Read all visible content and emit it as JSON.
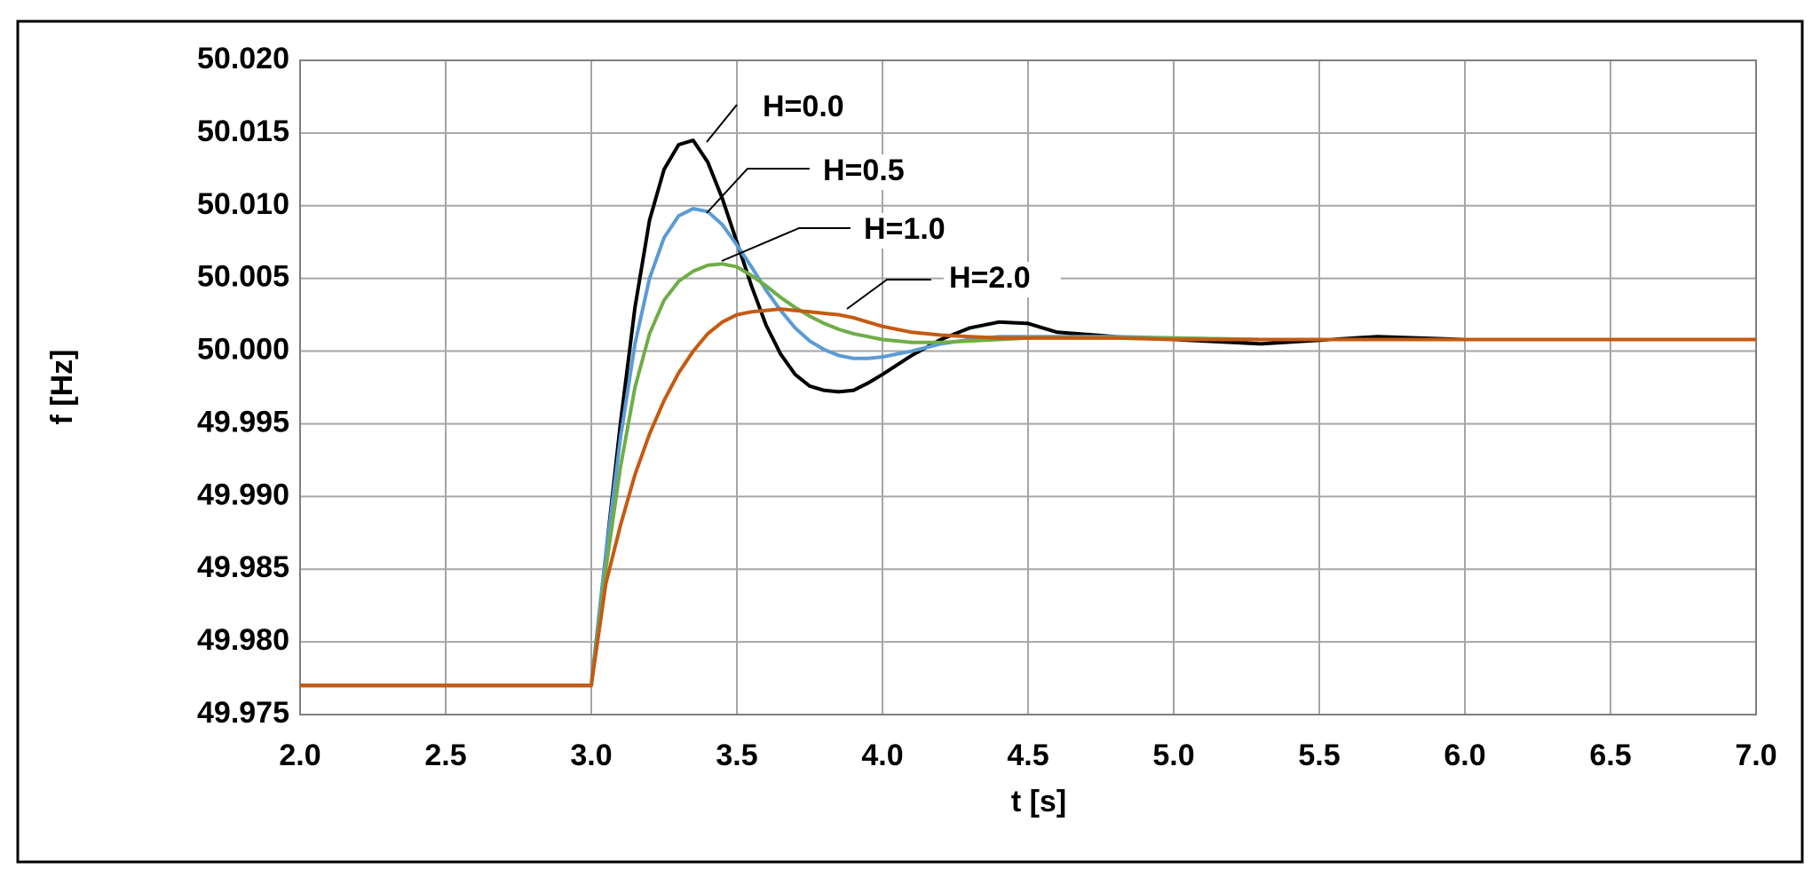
{
  "chart_data": {
    "type": "line",
    "xlabel": "t [s]",
    "ylabel": "f [Hz]",
    "x": [
      2.0,
      2.5,
      2.95,
      3.0,
      3.05,
      3.1,
      3.15,
      3.2,
      3.25,
      3.3,
      3.35,
      3.4,
      3.45,
      3.5,
      3.55,
      3.6,
      3.65,
      3.7,
      3.75,
      3.8,
      3.85,
      3.9,
      3.95,
      4.0,
      4.1,
      4.2,
      4.3,
      4.4,
      4.5,
      4.6,
      4.8,
      5.0,
      5.3,
      5.7,
      6.0,
      6.5,
      7.0
    ],
    "series": [
      {
        "name": "H=0.0",
        "color": "#000000",
        "values": [
          49.977,
          49.977,
          49.977,
          49.977,
          49.986,
          49.995,
          50.003,
          50.009,
          50.0125,
          50.0142,
          50.0145,
          50.013,
          50.0105,
          50.0075,
          50.0045,
          50.0018,
          49.9998,
          49.9984,
          49.9976,
          49.9973,
          49.9972,
          49.9973,
          49.9978,
          49.9984,
          49.9997,
          50.0008,
          50.0016,
          50.002,
          50.0019,
          50.0013,
          50.001,
          50.0008,
          50.0005,
          50.001,
          50.0008,
          50.0008,
          50.0008
        ]
      },
      {
        "name": "H=0.5",
        "color": "#5b9bd5",
        "values": [
          49.977,
          49.977,
          49.977,
          49.977,
          49.986,
          49.994,
          50.0005,
          50.005,
          50.0078,
          50.0093,
          50.0098,
          50.0096,
          50.0087,
          50.0073,
          50.0058,
          50.0042,
          50.0028,
          50.0016,
          50.0007,
          50.0001,
          49.9997,
          49.9995,
          49.9995,
          49.9996,
          50.0,
          50.0005,
          50.0008,
          50.001,
          50.001,
          50.001,
          50.001,
          50.0009,
          50.0008,
          50.0008,
          50.0008,
          50.0008,
          50.0008
        ]
      },
      {
        "name": "H=1.0",
        "color": "#70ad47",
        "values": [
          49.977,
          49.977,
          49.977,
          49.977,
          49.985,
          49.992,
          49.9975,
          50.0012,
          50.0035,
          50.0048,
          50.0055,
          50.0059,
          50.006,
          50.0058,
          50.0052,
          50.0045,
          50.0037,
          50.003,
          50.0024,
          50.0019,
          50.0015,
          50.0012,
          50.001,
          50.0008,
          50.0006,
          50.0006,
          50.0007,
          50.0008,
          50.0009,
          50.0009,
          50.0009,
          50.0009,
          50.0008,
          50.0008,
          50.0008,
          50.0008,
          50.0008
        ]
      },
      {
        "name": "H=2.0",
        "color": "#c55a11",
        "values": [
          49.977,
          49.977,
          49.977,
          49.977,
          49.984,
          49.988,
          49.9915,
          49.9943,
          49.9966,
          49.9985,
          50.0,
          50.0012,
          50.002,
          50.0025,
          50.0027,
          50.0028,
          50.0029,
          50.0028,
          50.0027,
          50.0026,
          50.0025,
          50.0023,
          50.002,
          50.0017,
          50.0013,
          50.0011,
          50.001,
          50.0009,
          50.0009,
          50.0009,
          50.0009,
          50.0008,
          50.0008,
          50.0008,
          50.0008,
          50.0008,
          50.0008
        ]
      }
    ],
    "xlim": [
      2.0,
      7.0
    ],
    "xticks": [
      {
        "value": 2,
        "label": "2.0"
      },
      2.5,
      {
        "value": 3,
        "label": "3.0"
      },
      3.5,
      {
        "value": 4,
        "label": "4.0"
      },
      4.5,
      {
        "value": 5,
        "label": "5.0"
      },
      5.5,
      {
        "value": 6,
        "label": "6.0"
      },
      6.5,
      {
        "value": 7,
        "label": "7.0"
      }
    ],
    "ylim": [
      49.975,
      50.02
    ],
    "yticks": [
      49.975,
      {
        "value": 49.98,
        "label": "49.980"
      },
      49.985,
      {
        "value": 49.99,
        "label": "49.990"
      },
      49.995,
      {
        "value": 50,
        "label": "50.000"
      },
      50.005,
      {
        "value": 50.01,
        "label": "50.010"
      },
      50.015,
      {
        "value": 50.02,
        "label": "50.020"
      }
    ],
    "grid": true
  }
}
